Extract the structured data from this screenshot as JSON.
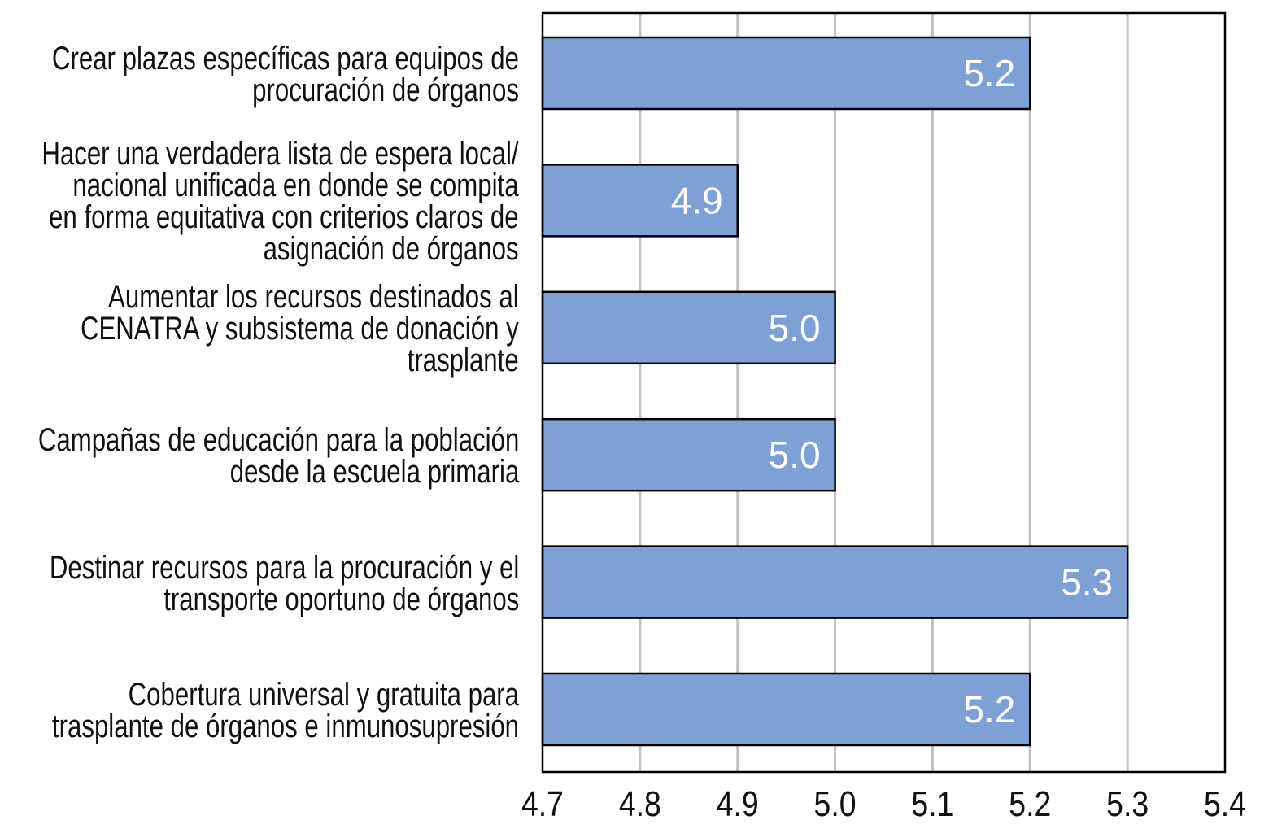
{
  "chart_data": {
    "type": "bar",
    "orientation": "horizontal",
    "categories": [
      [
        "Crear plazas específicas para equipos de",
        "procuración de órganos"
      ],
      [
        "Hacer una verdadera lista de espera local/",
        "nacional unificada en donde se compita",
        "en forma equitativa con criterios claros de",
        "asignación de órganos"
      ],
      [
        "Aumentar los recursos destinados al",
        "CENATRA y subsistema de donación y",
        "trasplante"
      ],
      [
        "Campañas de educación para la población",
        "desde la escuela primaria"
      ],
      [
        "Destinar recursos para la procuración y el",
        "transporte oportuno de órganos"
      ],
      [
        "Cobertura universal y gratuita para",
        "trasplante de órganos e inmunosupresión"
      ]
    ],
    "values": [
      5.2,
      4.9,
      5.0,
      5.0,
      5.3,
      5.2
    ],
    "data_labels": [
      "5.2",
      "4.9",
      "5.0",
      "5.0",
      "5.3",
      "5.2"
    ],
    "xlim": [
      4.7,
      5.4
    ],
    "xticks": [
      "4.7",
      "4.8",
      "4.9",
      "5.0",
      "5.1",
      "5.2",
      "5.3",
      "5.4"
    ],
    "grid": true,
    "bar_color": "#7fa0d4",
    "title": "",
    "xlabel": "",
    "ylabel": ""
  }
}
